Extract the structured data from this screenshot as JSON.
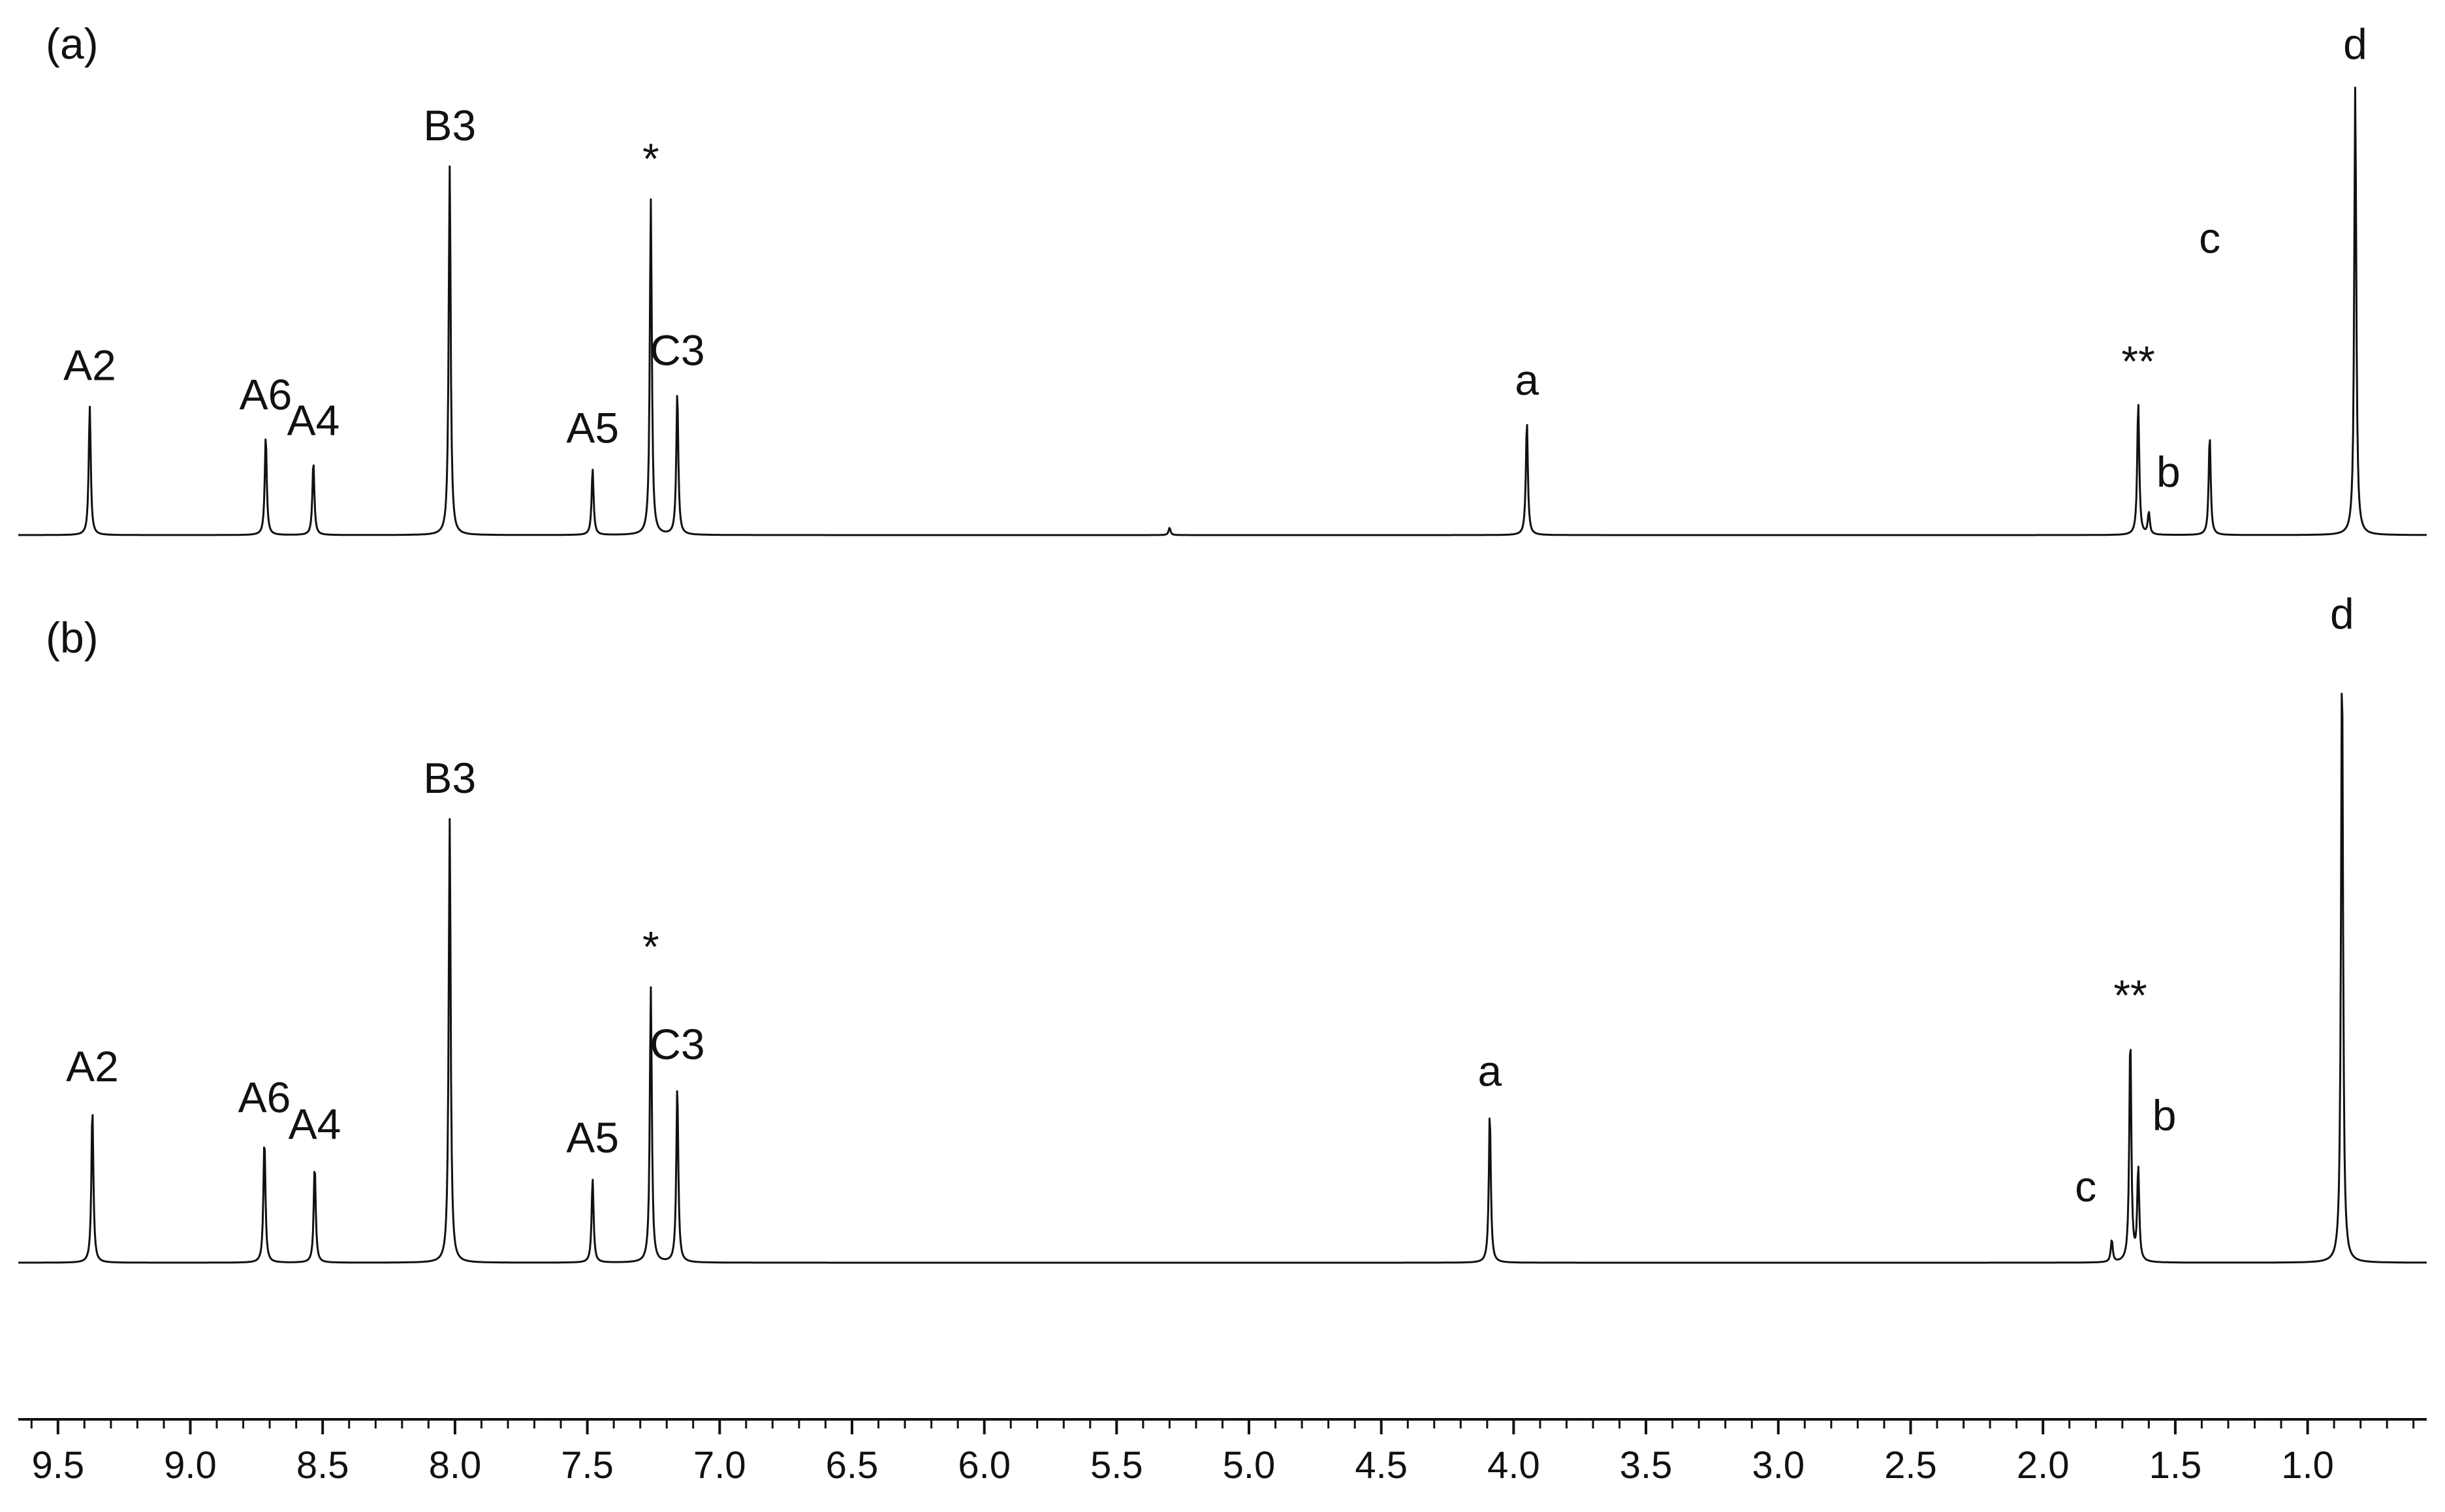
{
  "chart_data": {
    "type": "line",
    "xlim": [
      9.65,
      0.55
    ],
    "x_reversed": true,
    "grid": false,
    "legend": "none",
    "xaxis": {
      "ticks": [
        9.5,
        9.0,
        8.5,
        8.0,
        7.5,
        7.0,
        6.5,
        6.0,
        5.5,
        5.0,
        4.5,
        4.0,
        3.5,
        3.0,
        2.5,
        2.0,
        1.5,
        1.0
      ],
      "tick_labels": [
        "9.5",
        "9.0",
        "8.5",
        "8.0",
        "7.5",
        "7.0",
        "6.5",
        "6.0",
        "5.5",
        "5.0",
        "4.5",
        "4.0",
        "3.5",
        "3.0",
        "2.5",
        "2.0",
        "1.5",
        "1.0"
      ],
      "minor_step": 0.1
    },
    "panels": [
      {
        "label": "(a)",
        "peaks": [
          {
            "x": 9.38,
            "height": 0.35,
            "label": "A2"
          },
          {
            "x": 8.715,
            "height": 0.27,
            "label": "A6"
          },
          {
            "x": 8.535,
            "height": 0.2,
            "label": "A4"
          },
          {
            "x": 8.02,
            "height": 1.0,
            "label": "B3"
          },
          {
            "x": 7.48,
            "height": 0.18,
            "label": "A5"
          },
          {
            "x": 7.26,
            "height": 0.91,
            "label": "*"
          },
          {
            "x": 7.16,
            "height": 0.39,
            "label": "C3"
          },
          {
            "x": 5.3,
            "height": 0.02,
            "label": ""
          },
          {
            "x": 3.95,
            "height": 0.31,
            "label": "a"
          },
          {
            "x": 1.64,
            "height": 0.36,
            "label": "**"
          },
          {
            "x": 1.6,
            "height": 0.06,
            "label": "b"
          },
          {
            "x": 1.37,
            "height": 0.27,
            "label": "c"
          },
          {
            "x": 0.82,
            "height": 1.22,
            "label": "d"
          }
        ]
      },
      {
        "label": "(b)",
        "peaks": [
          {
            "x": 9.37,
            "height": 0.35,
            "label": "A2"
          },
          {
            "x": 8.72,
            "height": 0.28,
            "label": "A6"
          },
          {
            "x": 8.53,
            "height": 0.22,
            "label": "A4"
          },
          {
            "x": 8.02,
            "height": 1.0,
            "label": "B3"
          },
          {
            "x": 7.48,
            "height": 0.19,
            "label": "A5"
          },
          {
            "x": 7.26,
            "height": 0.62,
            "label": "*"
          },
          {
            "x": 7.16,
            "height": 0.4,
            "label": "C3"
          },
          {
            "x": 4.09,
            "height": 0.34,
            "label": "a"
          },
          {
            "x": 1.74,
            "height": 0.05,
            "label": "c"
          },
          {
            "x": 1.67,
            "height": 0.51,
            "label": "**"
          },
          {
            "x": 1.64,
            "height": 0.21,
            "label": "b"
          },
          {
            "x": 0.87,
            "height": 1.37,
            "label": "d"
          }
        ]
      }
    ]
  }
}
